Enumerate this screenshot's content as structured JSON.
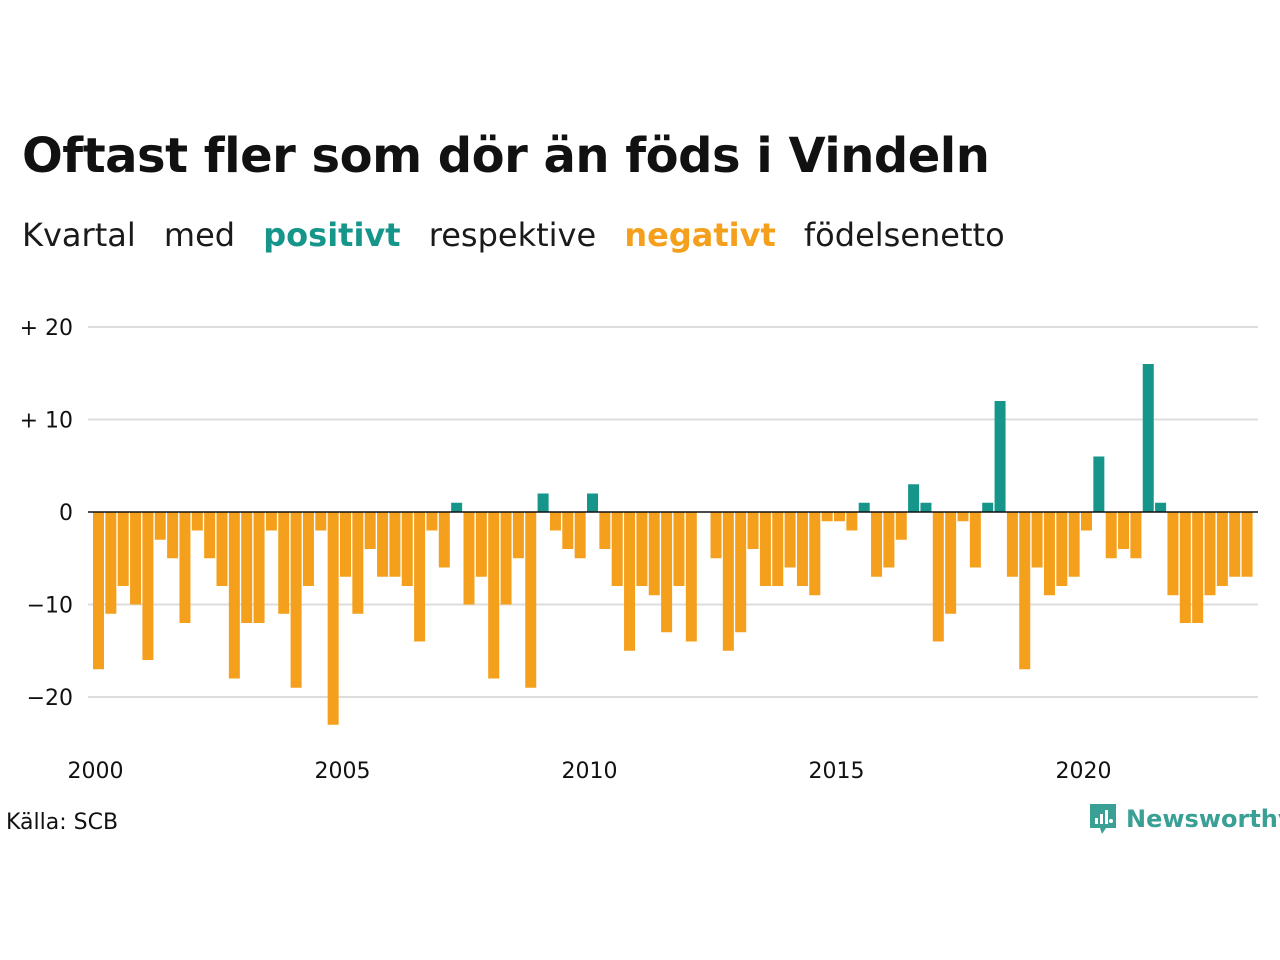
{
  "header": {
    "title": "Oftast fler som dör än föds i Vindeln",
    "subtitle_parts": [
      "Kvartal",
      "med",
      "positivt",
      "respektive",
      "negativt",
      "födelsenetto"
    ]
  },
  "footer": {
    "source": "Källa: SCB",
    "brand": "Newsworthy"
  },
  "colors": {
    "positive": "#16968a",
    "negative": "#f4a01c",
    "grid": "#dddddd",
    "brand": "#3a9f95"
  },
  "icons": {
    "brand": "newsworthy-logo-icon"
  },
  "chart_data": {
    "type": "bar",
    "title": "Oftast fler som dör än föds i Vindeln",
    "subtitle": "Kvartal med positivt respektive negativt födelsenetto",
    "x_start": "2000 Q1",
    "x_ticks": [
      "2000",
      "2005",
      "2010",
      "2015",
      "2020"
    ],
    "y_ticks": [
      {
        "value": 20,
        "label": "+ 20"
      },
      {
        "value": 10,
        "label": "+ 10"
      },
      {
        "value": 0,
        "label": "0"
      },
      {
        "value": -10,
        "label": "−10"
      },
      {
        "value": -20,
        "label": "−20"
      }
    ],
    "ylim": [
      -25,
      20
    ],
    "grid": true,
    "legend": "none",
    "values": [
      -17,
      -11,
      -8,
      -10,
      -16,
      -3,
      -5,
      -12,
      -2,
      -5,
      -8,
      -18,
      -12,
      -12,
      -2,
      -11,
      -19,
      -8,
      -2,
      -23,
      -7,
      -11,
      -4,
      -7,
      -7,
      -8,
      -14,
      -2,
      -6,
      1,
      -10,
      -7,
      -18,
      -10,
      -5,
      -19,
      2,
      -2,
      -4,
      -5,
      2,
      -4,
      -8,
      -15,
      -8,
      -9,
      -13,
      -8,
      -14,
      0,
      -5,
      -15,
      -13,
      -4,
      -8,
      -8,
      -6,
      -8,
      -9,
      -1,
      -1,
      -2,
      1,
      -7,
      -6,
      -3,
      3,
      1,
      -14,
      -11,
      -1,
      -6,
      1,
      12,
      -7,
      -17,
      -6,
      -9,
      -8,
      -7,
      -2,
      6,
      -5,
      -4,
      -5,
      16,
      1,
      -9,
      -12,
      -12,
      -9,
      -8,
      -7,
      -7
    ]
  }
}
